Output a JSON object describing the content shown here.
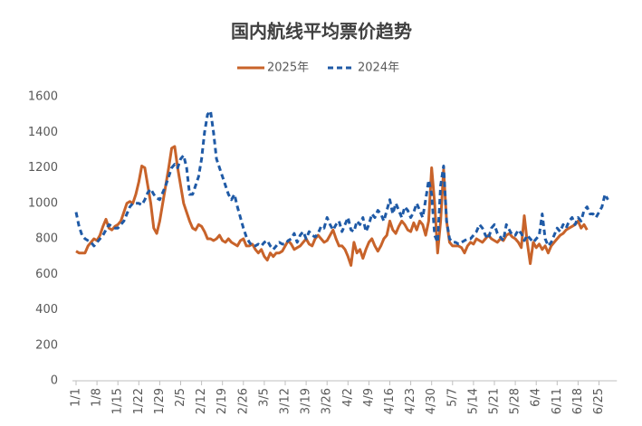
{
  "chart_data": {
    "type": "line",
    "title": "国内航线平均票价趋势",
    "categories": [
      "1/1",
      null,
      null,
      null,
      null,
      null,
      null,
      "1/8",
      null,
      null,
      null,
      null,
      null,
      null,
      "1/15",
      null,
      null,
      null,
      null,
      null,
      null,
      "1/22",
      null,
      null,
      null,
      null,
      null,
      null,
      "1/29",
      null,
      null,
      null,
      null,
      null,
      null,
      "2/5",
      null,
      null,
      null,
      null,
      null,
      null,
      "2/12",
      null,
      null,
      null,
      null,
      null,
      null,
      "2/19",
      null,
      null,
      null,
      null,
      null,
      null,
      "2/26",
      null,
      null,
      null,
      null,
      null,
      null,
      "3/5",
      null,
      null,
      null,
      null,
      null,
      null,
      "3/12",
      null,
      null,
      null,
      null,
      null,
      null,
      "3/19",
      null,
      null,
      null,
      null,
      null,
      null,
      "3/26",
      null,
      null,
      null,
      null,
      null,
      null,
      "4/2",
      null,
      null,
      null,
      null,
      null,
      null,
      "4/9",
      null,
      null,
      null,
      null,
      null,
      null,
      "4/16",
      null,
      null,
      null,
      null,
      null,
      null,
      "4/23",
      null,
      null,
      null,
      null,
      null,
      null,
      "4/30",
      null,
      null,
      null,
      null,
      null,
      null,
      "5/7",
      null,
      null,
      null,
      null,
      null,
      null,
      "5/14",
      null,
      null,
      null,
      null,
      null,
      null,
      "5/21",
      null,
      null,
      null,
      null,
      null,
      null,
      "5/28",
      null,
      null,
      null,
      null,
      null,
      null,
      "6/4",
      null,
      null,
      null,
      null,
      null,
      null,
      "6/11",
      null,
      null,
      null,
      null,
      null,
      null,
      "6/18",
      null,
      null,
      null,
      null,
      null,
      null,
      "6/25",
      null,
      null,
      null,
      null,
      null,
      null
    ],
    "series": [
      {
        "name": "2025年",
        "color": "#c8632a",
        "dash": false,
        "values": [
          730,
          720,
          720,
          720,
          760,
          780,
          800,
          790,
          820,
          870,
          910,
          860,
          850,
          870,
          880,
          900,
          950,
          1000,
          1010,
          1000,
          1050,
          1120,
          1210,
          1200,
          1100,
          1000,
          860,
          830,
          900,
          1000,
          1100,
          1200,
          1310,
          1320,
          1200,
          1100,
          1000,
          950,
          900,
          860,
          850,
          880,
          870,
          840,
          800,
          800,
          790,
          800,
          820,
          790,
          780,
          800,
          780,
          770,
          760,
          790,
          800,
          760,
          760,
          770,
          740,
          720,
          740,
          700,
          680,
          720,
          700,
          720,
          720,
          730,
          760,
          790,
          770,
          740,
          750,
          760,
          780,
          800,
          770,
          760,
          800,
          820,
          800,
          780,
          790,
          820,
          850,
          800,
          760,
          760,
          740,
          700,
          650,
          780,
          720,
          740,
          690,
          740,
          780,
          800,
          760,
          730,
          760,
          800,
          820,
          900,
          850,
          830,
          870,
          900,
          880,
          850,
          840,
          890,
          850,
          900,
          880,
          820,
          900,
          1200,
          1000,
          720,
          900,
          1190,
          900,
          780,
          760,
          760,
          760,
          750,
          720,
          760,
          780,
          770,
          800,
          790,
          780,
          800,
          820,
          800,
          790,
          780,
          800,
          790,
          820,
          830,
          810,
          800,
          780,
          750,
          930,
          780,
          660,
          780,
          750,
          770,
          740,
          760,
          720,
          760,
          780,
          800,
          820,
          830,
          850,
          860,
          870,
          880,
          900,
          860,
          880,
          850,
          null,
          null,
          null,
          null,
          null,
          null,
          null,
          null,
          null,
          null
        ]
      },
      {
        "name": "2024年",
        "color": "#1f5aa6",
        "dash": true,
        "values": [
          950,
          870,
          820,
          800,
          790,
          780,
          760,
          780,
          800,
          820,
          850,
          880,
          870,
          860,
          860,
          880,
          900,
          940,
          980,
          1000,
          1000,
          1000,
          990,
          1020,
          1060,
          1080,
          1050,
          1030,
          1020,
          1060,
          1100,
          1150,
          1200,
          1220,
          1200,
          1250,
          1270,
          1200,
          1050,
          1050,
          1100,
          1150,
          1250,
          1400,
          1500,
          1520,
          1400,
          1250,
          1200,
          1150,
          1100,
          1050,
          1020,
          1050,
          980,
          920,
          860,
          810,
          780,
          760,
          760,
          770,
          760,
          780,
          790,
          760,
          740,
          760,
          780,
          770,
          770,
          790,
          800,
          830,
          780,
          820,
          840,
          800,
          840,
          820,
          810,
          830,
          870,
          860,
          920,
          880,
          850,
          880,
          900,
          840,
          880,
          920,
          850,
          840,
          900,
          880,
          920,
          840,
          880,
          940,
          920,
          960,
          940,
          900,
          960,
          1020,
          940,
          1000,
          960,
          920,
          980,
          960,
          920,
          950,
          1000,
          960,
          920,
          1020,
          1130,
          1050,
          820,
          780,
          1100,
          1210,
          900,
          800,
          780,
          780,
          770,
          780,
          790,
          800,
          800,
          820,
          840,
          880,
          860,
          820,
          800,
          860,
          880,
          830,
          810,
          790,
          880,
          850,
          820,
          820,
          850,
          830,
          790,
          820,
          800,
          780,
          800,
          820,
          940,
          800,
          760,
          780,
          820,
          860,
          840,
          880,
          860,
          900,
          920,
          880,
          920,
          900,
          960,
          980,
          940,
          940,
          920,
          950,
          980,
          1050,
          1020,
          null,
          null,
          null
        ]
      }
    ],
    "ylim": [
      0,
      1600
    ],
    "yticks": [
      0,
      200,
      400,
      600,
      800,
      1000,
      1200,
      1400,
      1600
    ],
    "grid": false,
    "legend": "top"
  }
}
